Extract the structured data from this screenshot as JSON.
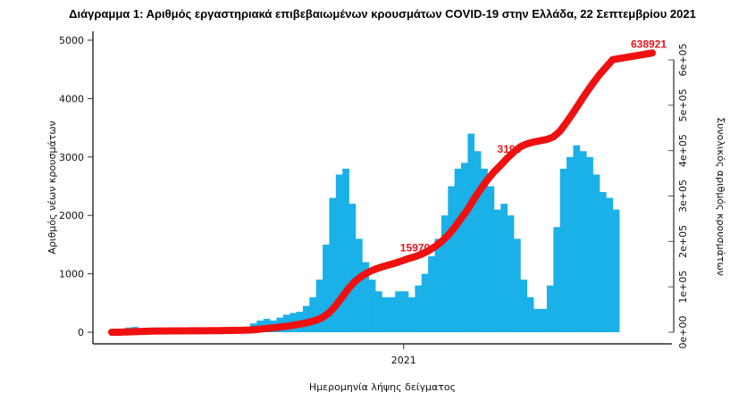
{
  "chart_data": {
    "type": "bar",
    "title": "Διάγραμμα 1: Αριθμός εργαστηριακά επιβεβαιωμένων κρουσμάτων COVID-19 στην Ελλάδα, 22 Σεπτεμβρίου 2021",
    "xlabel": "Ημερομηνία λήψης δείγματος",
    "ylabel": "Αριθμός νέων κρουσμάτων",
    "y2label": "Συνολικός αριθμός κρουσμάτων",
    "x_tick_labels": [
      "2021"
    ],
    "y_ticks": [
      "0",
      "1000",
      "2000",
      "3000",
      "4000",
      "5000"
    ],
    "y2_ticks": [
      "0e+00",
      "1e+05",
      "2e+05",
      "3e+05",
      "4e+05",
      "5e+05",
      "6e+05"
    ],
    "ylim": [
      0,
      5000
    ],
    "y2lim": [
      0,
      600000
    ],
    "x_start": "2020-02-26",
    "x_end": "2021-09-22",
    "resolution": "weekly average of daily new cases",
    "series": [
      {
        "type": "bar",
        "color": "#1ab0e8",
        "values": [
          10,
          50,
          80,
          90,
          60,
          50,
          40,
          20,
          10,
          10,
          10,
          10,
          10,
          10,
          15,
          20,
          25,
          30,
          35,
          40,
          80,
          150,
          200,
          230,
          200,
          250,
          300,
          330,
          350,
          450,
          600,
          900,
          1500,
          2300,
          2700,
          2800,
          2200,
          1600,
          1200,
          900,
          700,
          600,
          600,
          700,
          700,
          600,
          800,
          1000,
          1300,
          1600,
          2000,
          2500,
          2800,
          2900,
          3400,
          3100,
          2800,
          2500,
          2100,
          2200,
          2000,
          1600,
          900,
          600,
          400,
          400,
          800,
          1800,
          2800,
          3000,
          3200,
          3100,
          3000,
          2700,
          2400,
          2300,
          2100
        ]
      },
      {
        "type": "line",
        "color": "#f01010",
        "cumulative_of": "bars"
      }
    ],
    "annotations": [
      {
        "text": "15970",
        "date": "2021-01-15"
      },
      {
        "text": "3196",
        "date": "2021-04-25"
      },
      {
        "text": "638921",
        "date": "2021-09-22"
      }
    ],
    "grid": false
  }
}
